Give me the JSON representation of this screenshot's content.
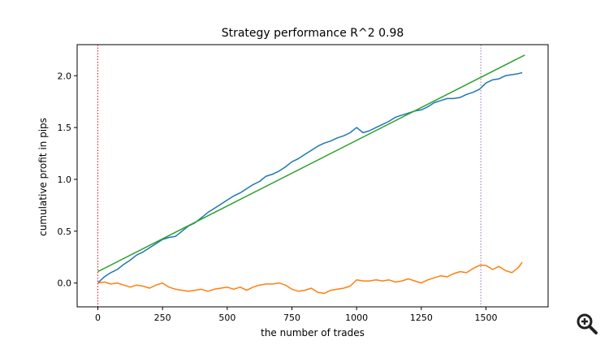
{
  "chart_data": {
    "type": "line",
    "title": "Strategy performance R^2 0.98",
    "xlabel": "the number of trades",
    "ylabel": "cumulative profit in pips",
    "xlim": [
      -80,
      1740
    ],
    "ylim": [
      -0.23,
      2.3
    ],
    "xticks": [
      0,
      250,
      500,
      750,
      1000,
      1250,
      1500
    ],
    "yticks": [
      0.0,
      0.5,
      1.0,
      1.5,
      2.0
    ],
    "xtick_labels": [
      "0",
      "250",
      "500",
      "750",
      "1000",
      "1250",
      "1500"
    ],
    "ytick_labels": [
      "0.0",
      "0.5",
      "1.0",
      "1.5",
      "2.0"
    ],
    "grid": false,
    "legend": "none",
    "series": [
      {
        "color": "#1f77b4",
        "x": [
          0,
          25,
          50,
          75,
          100,
          125,
          150,
          175,
          200,
          225,
          250,
          275,
          300,
          325,
          350,
          375,
          400,
          425,
          450,
          475,
          500,
          525,
          550,
          575,
          600,
          625,
          650,
          675,
          700,
          725,
          750,
          775,
          800,
          825,
          850,
          875,
          900,
          925,
          950,
          975,
          1000,
          1025,
          1050,
          1075,
          1100,
          1125,
          1150,
          1175,
          1200,
          1225,
          1250,
          1275,
          1300,
          1325,
          1350,
          1375,
          1400,
          1425,
          1450,
          1475,
          1500,
          1525,
          1550,
          1575,
          1600,
          1625,
          1640
        ],
        "y": [
          0.0,
          0.06,
          0.1,
          0.13,
          0.18,
          0.22,
          0.27,
          0.3,
          0.34,
          0.38,
          0.42,
          0.44,
          0.45,
          0.5,
          0.55,
          0.58,
          0.63,
          0.68,
          0.72,
          0.76,
          0.8,
          0.84,
          0.87,
          0.91,
          0.95,
          0.98,
          1.03,
          1.05,
          1.08,
          1.12,
          1.17,
          1.2,
          1.24,
          1.28,
          1.32,
          1.35,
          1.37,
          1.4,
          1.42,
          1.45,
          1.5,
          1.45,
          1.47,
          1.5,
          1.53,
          1.56,
          1.6,
          1.62,
          1.64,
          1.66,
          1.67,
          1.7,
          1.74,
          1.76,
          1.78,
          1.78,
          1.79,
          1.82,
          1.84,
          1.87,
          1.93,
          1.96,
          1.97,
          2.0,
          2.01,
          2.02,
          2.03
        ]
      },
      {
        "color": "#ff7f0e",
        "x": [
          0,
          25,
          50,
          75,
          100,
          125,
          150,
          175,
          200,
          225,
          250,
          275,
          300,
          325,
          350,
          375,
          400,
          425,
          450,
          475,
          500,
          525,
          550,
          575,
          600,
          625,
          650,
          675,
          700,
          725,
          750,
          775,
          800,
          825,
          850,
          875,
          900,
          925,
          950,
          975,
          1000,
          1025,
          1050,
          1075,
          1100,
          1125,
          1150,
          1175,
          1200,
          1225,
          1250,
          1275,
          1300,
          1325,
          1350,
          1375,
          1400,
          1425,
          1450,
          1475,
          1500,
          1525,
          1550,
          1575,
          1600,
          1625,
          1640
        ],
        "y": [
          0.0,
          0.01,
          -0.01,
          0.0,
          -0.02,
          -0.04,
          -0.02,
          -0.03,
          -0.05,
          -0.02,
          0.0,
          -0.04,
          -0.06,
          -0.07,
          -0.08,
          -0.07,
          -0.06,
          -0.08,
          -0.06,
          -0.05,
          -0.04,
          -0.06,
          -0.04,
          -0.07,
          -0.04,
          -0.02,
          -0.01,
          -0.01,
          0.0,
          -0.02,
          -0.06,
          -0.08,
          -0.07,
          -0.05,
          -0.09,
          -0.1,
          -0.07,
          -0.06,
          -0.05,
          -0.03,
          0.03,
          0.02,
          0.02,
          0.03,
          0.02,
          0.03,
          0.01,
          0.02,
          0.04,
          0.02,
          0.0,
          0.03,
          0.05,
          0.07,
          0.06,
          0.09,
          0.11,
          0.1,
          0.14,
          0.17,
          0.17,
          0.13,
          0.16,
          0.12,
          0.1,
          0.15,
          0.2
        ]
      },
      {
        "color": "#2ca02c",
        "x": [
          0,
          1650
        ],
        "y": [
          0.11,
          2.2
        ]
      }
    ],
    "vlines": [
      {
        "x": 0,
        "color": "#ff0000"
      },
      {
        "x": 1480,
        "color": "#9467bd"
      }
    ]
  },
  "toolbar": {
    "zoom_icon": "magnifier-plus-icon"
  }
}
